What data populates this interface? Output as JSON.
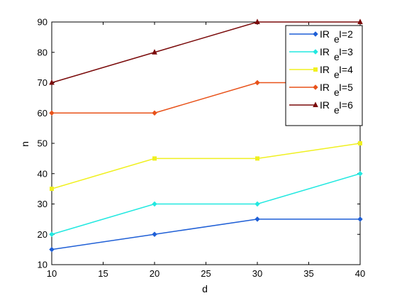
{
  "chart_data": {
    "type": "line",
    "title": "",
    "xlabel": "d",
    "ylabel": "n",
    "xlim": [
      10,
      40
    ],
    "ylim": [
      10,
      90
    ],
    "x_ticks": [
      10,
      15,
      20,
      25,
      30,
      35,
      40
    ],
    "y_ticks": [
      10,
      20,
      30,
      40,
      50,
      60,
      70,
      80,
      90
    ],
    "grid": false,
    "legend_position": "top-right",
    "series": [
      {
        "name": "IR_e I=2",
        "label_main": "IR",
        "label_sub": "e",
        "label_rest": "I=2",
        "color": "#1f5fd6",
        "marker": "diamond",
        "x": [
          10,
          20,
          30,
          40
        ],
        "y": [
          15,
          20,
          25,
          25
        ]
      },
      {
        "name": "IR_e I=3",
        "label_main": "IR",
        "label_sub": "e",
        "label_rest": "I=3",
        "color": "#22e8e0",
        "marker": "diamond",
        "x": [
          10,
          20,
          30,
          40
        ],
        "y": [
          20,
          30,
          30,
          40
        ]
      },
      {
        "name": "IR_e I=4",
        "label_main": "IR",
        "label_sub": "e",
        "label_rest": "I=4",
        "color": "#f0f020",
        "marker": "square",
        "x": [
          10,
          20,
          30,
          40
        ],
        "y": [
          35,
          45,
          45,
          50
        ]
      },
      {
        "name": "IR_e I=5",
        "label_main": "IR",
        "label_sub": "e",
        "label_rest": "I=5",
        "color": "#e8521a",
        "marker": "diamond",
        "x": [
          10,
          20,
          30,
          40
        ],
        "y": [
          60,
          60,
          70,
          70
        ]
      },
      {
        "name": "IR_e I=6",
        "label_main": "IR",
        "label_sub": "e",
        "label_rest": "I=6",
        "color": "#7a0a0a",
        "marker": "triangle",
        "x": [
          10,
          20,
          30,
          40
        ],
        "y": [
          70,
          80,
          90,
          90
        ]
      }
    ]
  }
}
